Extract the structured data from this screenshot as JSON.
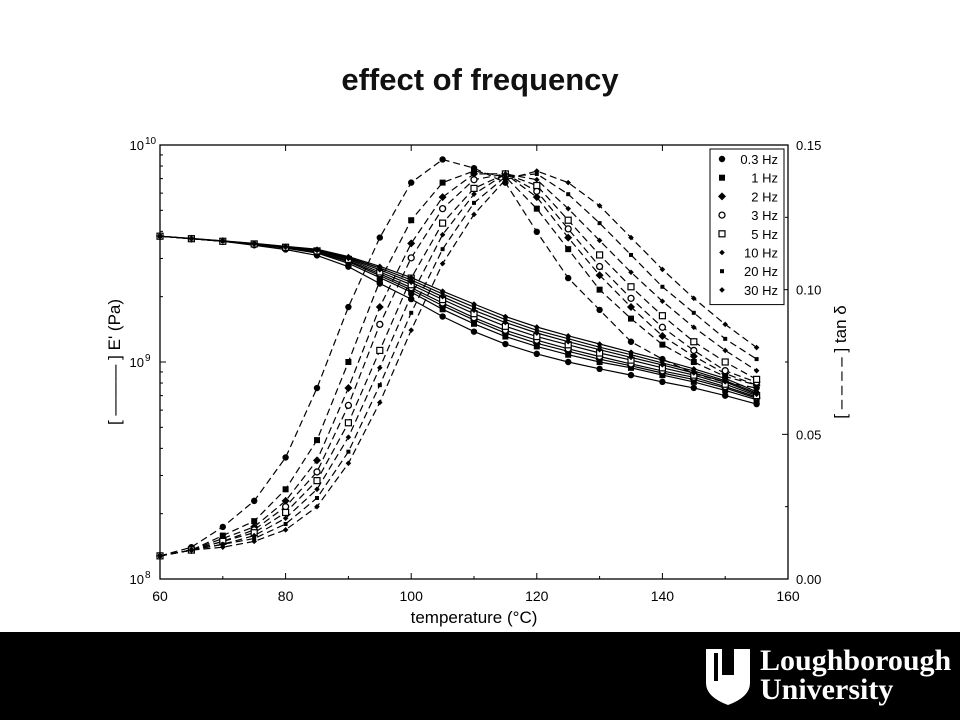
{
  "slide": {
    "title": "effect of frequency"
  },
  "logo": {
    "line1": "Loughborough",
    "line2": "University",
    "background": "#000000",
    "color": "#ffffff"
  },
  "chart_data": {
    "type": "line",
    "title": "",
    "xlabel": "temperature (°C)",
    "ylabel_left": "[ ——— ] E' (Pa)",
    "ylabel_right": "[ – – – – ] tan δ",
    "xlim": [
      60,
      160
    ],
    "x_ticks": [
      "60",
      "80",
      "100",
      "120",
      "140",
      "160"
    ],
    "y_left_scale": "log",
    "y_left_lim": [
      100000000,
      10000000000
    ],
    "y_left_ticks": [
      {
        "base": "10",
        "exp": "8",
        "value": 100000000
      },
      {
        "base": "10",
        "exp": "9",
        "value": 1000000000
      },
      {
        "base": "10",
        "exp": "10",
        "value": 10000000000
      }
    ],
    "y_right_lim": [
      0,
      0.15
    ],
    "y_right_ticks": [
      "0.00",
      "0.05",
      "0.10",
      "0.15"
    ],
    "legend_position": "top-right",
    "x": [
      60,
      65,
      70,
      75,
      80,
      85,
      90,
      95,
      100,
      105,
      110,
      115,
      120,
      125,
      130,
      135,
      140,
      145,
      150,
      155
    ],
    "series": [
      {
        "name": "0.3 Hz",
        "marker": "circle-filled",
        "modulus": [
          3800000000.0,
          3700000000.0,
          3600000000.0,
          3450000000.0,
          3300000000.0,
          3100000000.0,
          2750000000.0,
          2300000000.0,
          1950000000.0,
          1620000000.0,
          1380000000.0,
          1210000000.0,
          1090000000.0,
          1000000000.0,
          930000000.0,
          870000000.0,
          810000000.0,
          760000000.0,
          700000000.0,
          640000000.0
        ],
        "tan_delta": [
          0.008,
          0.011,
          0.018,
          0.027,
          0.042,
          0.066,
          0.094,
          0.118,
          0.137,
          0.145,
          0.142,
          0.137,
          0.12,
          0.104,
          0.093,
          0.082,
          0.076,
          0.071,
          0.068,
          0.066
        ]
      },
      {
        "name": "1 Hz",
        "marker": "square-filled",
        "modulus": [
          3800000000.0,
          3700000000.0,
          3600000000.0,
          3480000000.0,
          3350000000.0,
          3180000000.0,
          2850000000.0,
          2450000000.0,
          2100000000.0,
          1750000000.0,
          1500000000.0,
          1310000000.0,
          1180000000.0,
          1080000000.0,
          1000000000.0,
          940000000.0,
          870000000.0,
          810000000.0,
          740000000.0,
          670000000.0
        ],
        "tan_delta": [
          0.008,
          0.01,
          0.015,
          0.02,
          0.031,
          0.048,
          0.075,
          0.103,
          0.124,
          0.137,
          0.141,
          0.139,
          0.128,
          0.114,
          0.1,
          0.09,
          0.081,
          0.075,
          0.07,
          0.067
        ]
      },
      {
        "name": "2 Hz",
        "marker": "diamond-filled",
        "modulus": [
          3800000000.0,
          3700000000.0,
          3600000000.0,
          3480000000.0,
          3360000000.0,
          3200000000.0,
          2900000000.0,
          2500000000.0,
          2150000000.0,
          1820000000.0,
          1560000000.0,
          1360000000.0,
          1220000000.0,
          1120000000.0,
          1030000000.0,
          960000000.0,
          890000000.0,
          830000000.0,
          760000000.0,
          680000000.0
        ],
        "tan_delta": [
          0.008,
          0.01,
          0.014,
          0.018,
          0.027,
          0.041,
          0.066,
          0.094,
          0.116,
          0.132,
          0.14,
          0.14,
          0.132,
          0.118,
          0.105,
          0.094,
          0.084,
          0.077,
          0.071,
          0.067
        ]
      },
      {
        "name": "3 Hz",
        "marker": "circle-open",
        "modulus": [
          3800000000.0,
          3700000000.0,
          3600000000.0,
          3490000000.0,
          3370000000.0,
          3220000000.0,
          2930000000.0,
          2550000000.0,
          2200000000.0,
          1870000000.0,
          1600000000.0,
          1400000000.0,
          1260000000.0,
          1150000000.0,
          1060000000.0,
          980000000.0,
          910000000.0,
          850000000.0,
          770000000.0,
          690000000.0
        ],
        "tan_delta": [
          0.008,
          0.01,
          0.013,
          0.017,
          0.025,
          0.037,
          0.06,
          0.088,
          0.111,
          0.128,
          0.138,
          0.14,
          0.134,
          0.121,
          0.108,
          0.097,
          0.087,
          0.079,
          0.072,
          0.068
        ]
      },
      {
        "name": "5 Hz",
        "marker": "square-open",
        "modulus": [
          3800000000.0,
          3700000000.0,
          3600000000.0,
          3500000000.0,
          3380000000.0,
          3250000000.0,
          2970000000.0,
          2600000000.0,
          2270000000.0,
          1940000000.0,
          1670000000.0,
          1460000000.0,
          1310000000.0,
          1200000000.0,
          1100000000.0,
          1020000000.0,
          940000000.0,
          870000000.0,
          790000000.0,
          700000000.0
        ],
        "tan_delta": [
          0.008,
          0.01,
          0.013,
          0.016,
          0.023,
          0.034,
          0.054,
          0.079,
          0.104,
          0.123,
          0.135,
          0.14,
          0.136,
          0.124,
          0.112,
          0.101,
          0.091,
          0.082,
          0.075,
          0.069
        ]
      },
      {
        "name": "10 Hz",
        "marker": "small-diamond",
        "modulus": [
          3800000000.0,
          3700000000.0,
          3610000000.0,
          3500000000.0,
          3390000000.0,
          3270000000.0,
          3000000000.0,
          2660000000.0,
          2330000000.0,
          2000000000.0,
          1730000000.0,
          1520000000.0,
          1360000000.0,
          1240000000.0,
          1140000000.0,
          1050000000.0,
          970000000.0,
          890000000.0,
          810000000.0,
          710000000.0
        ],
        "tan_delta": [
          0.008,
          0.01,
          0.012,
          0.015,
          0.021,
          0.031,
          0.049,
          0.073,
          0.098,
          0.119,
          0.133,
          0.14,
          0.138,
          0.128,
          0.117,
          0.106,
          0.096,
          0.087,
          0.079,
          0.072
        ]
      },
      {
        "name": "20 Hz",
        "marker": "small-square",
        "modulus": [
          3800000000.0,
          3700000000.0,
          3610000000.0,
          3510000000.0,
          3400000000.0,
          3290000000.0,
          3030000000.0,
          2710000000.0,
          2390000000.0,
          2060000000.0,
          1790000000.0,
          1570000000.0,
          1400000000.0,
          1280000000.0,
          1170000000.0,
          1080000000.0,
          990000000.0,
          910000000.0,
          820000000.0,
          720000000.0
        ],
        "tan_delta": [
          0.008,
          0.01,
          0.012,
          0.014,
          0.019,
          0.028,
          0.044,
          0.067,
          0.092,
          0.114,
          0.13,
          0.139,
          0.14,
          0.133,
          0.123,
          0.112,
          0.101,
          0.092,
          0.083,
          0.076
        ]
      },
      {
        "name": "30 Hz",
        "marker": "small-diamond",
        "modulus": [
          3800000000.0,
          3710000000.0,
          3620000000.0,
          3520000000.0,
          3410000000.0,
          3310000000.0,
          3060000000.0,
          2760000000.0,
          2450000000.0,
          2120000000.0,
          1850000000.0,
          1620000000.0,
          1450000000.0,
          1320000000.0,
          1210000000.0,
          1110000000.0,
          1020000000.0,
          930000000.0,
          840000000.0,
          730000000.0
        ],
        "tan_delta": [
          0.008,
          0.01,
          0.011,
          0.013,
          0.017,
          0.025,
          0.04,
          0.061,
          0.086,
          0.109,
          0.126,
          0.138,
          0.141,
          0.137,
          0.129,
          0.118,
          0.107,
          0.097,
          0.088,
          0.08
        ]
      }
    ]
  }
}
